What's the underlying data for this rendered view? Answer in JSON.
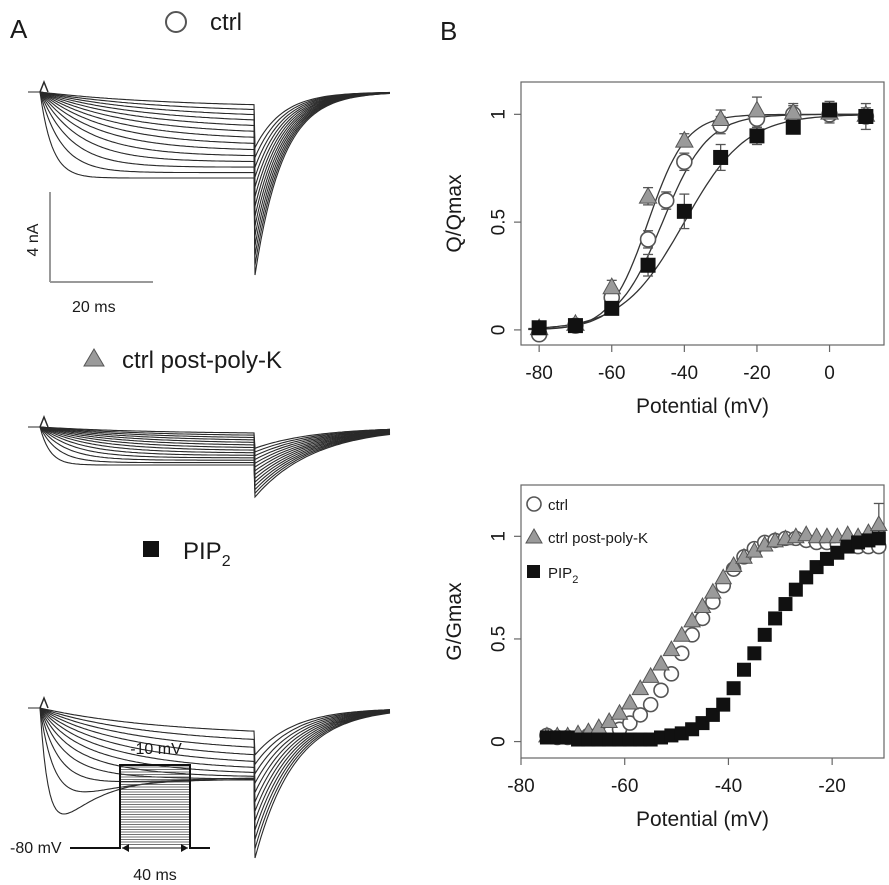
{
  "panel_labels": {
    "a": "A",
    "b": "B"
  },
  "traces": {
    "groups": [
      {
        "label": "ctrl",
        "marker": "open-circle"
      },
      {
        "label": "ctrl post-poly-K",
        "marker": "gray-triangle"
      },
      {
        "label": "PIP",
        "sub": "2",
        "marker": "black-square"
      }
    ],
    "scale_bar": {
      "current": "4 nA",
      "time": "20 ms"
    },
    "protocol": {
      "step": "-10 mV",
      "hold": "-80 mV",
      "duration": "40 ms"
    }
  },
  "colors": {
    "ctrl_marker": "#ffffff",
    "polyK_marker": "#9a9a9a",
    "pip2_marker": "#111111",
    "axis": "#666666",
    "trace": "#2a2a2a"
  },
  "chart_data": [
    {
      "type": "scatter",
      "xlabel": "Potential (mV)",
      "ylabel": "Q/Qmax",
      "xlim": [
        -85,
        15
      ],
      "ylim": [
        -0.07,
        1.15
      ],
      "xticks": [
        -80,
        -60,
        -40,
        -20,
        0
      ],
      "yticks": [
        0,
        0.5,
        1
      ],
      "ytick_labels": [
        "0",
        "0.5",
        "1"
      ],
      "series": [
        {
          "marker": "circle-open",
          "color": "#ffffff",
          "x": [
            -80,
            -70,
            -60,
            -50,
            -45,
            -40,
            -30,
            -20,
            -10,
            0,
            10
          ],
          "y": [
            -0.02,
            0.02,
            0.15,
            0.42,
            0.6,
            0.78,
            0.95,
            0.98,
            1.0,
            1.0,
            0.99
          ],
          "err": [
            0.02,
            0.02,
            0.03,
            0.04,
            0.04,
            0.04,
            0.04,
            0.04,
            0.04,
            0.04,
            0.06
          ]
        },
        {
          "marker": "triangle",
          "color": "#9a9a9a",
          "x": [
            -80,
            -70,
            -60,
            -50,
            -40,
            -30,
            -20,
            -10,
            0,
            10
          ],
          "y": [
            0.01,
            0.03,
            0.2,
            0.62,
            0.88,
            0.98,
            1.02,
            1.01,
            1.01,
            1.0
          ],
          "err": [
            0.02,
            0.02,
            0.03,
            0.04,
            0.03,
            0.04,
            0.06,
            0.04,
            0.04,
            0.03
          ]
        },
        {
          "marker": "square",
          "color": "#111111",
          "x": [
            -80,
            -70,
            -60,
            -50,
            -40,
            -30,
            -20,
            -10,
            0,
            10
          ],
          "y": [
            0.01,
            0.02,
            0.1,
            0.3,
            0.55,
            0.8,
            0.9,
            0.94,
            1.02,
            0.99
          ],
          "err": [
            0.02,
            0.02,
            0.03,
            0.05,
            0.08,
            0.06,
            0.04,
            0.03,
            0.04,
            0.03
          ]
        }
      ]
    },
    {
      "type": "scatter",
      "xlabel": "Potential (mV)",
      "ylabel": "G/Gmax",
      "xlim": [
        -80,
        -10
      ],
      "ylim": [
        -0.08,
        1.25
      ],
      "xticks": [
        -80,
        -60,
        -40,
        -20
      ],
      "yticks": [
        0,
        0.5,
        1
      ],
      "ytick_labels": [
        "0",
        "0.5",
        "1"
      ],
      "legend": {
        "position": "top-left",
        "entries": [
          {
            "label": "ctrl",
            "marker": "circle-open"
          },
          {
            "label": "ctrl post-poly-K",
            "marker": "triangle"
          },
          {
            "label": "PIP",
            "sub": "2",
            "marker": "square"
          }
        ]
      },
      "series": [
        {
          "marker": "circle-open",
          "color": "#ffffff",
          "x": [
            -75,
            -73,
            -71,
            -69,
            -67,
            -65,
            -63,
            -61,
            -59,
            -57,
            -55,
            -53,
            -51,
            -49,
            -47,
            -45,
            -43,
            -41,
            -39,
            -37,
            -35,
            -33,
            -31,
            -29,
            -27,
            -25,
            -23,
            -21,
            -19,
            -17,
            -15,
            -13,
            -11
          ],
          "y": [
            0.03,
            0.02,
            0.02,
            0.02,
            0.03,
            0.03,
            0.04,
            0.06,
            0.09,
            0.13,
            0.18,
            0.25,
            0.33,
            0.43,
            0.52,
            0.6,
            0.68,
            0.76,
            0.84,
            0.9,
            0.94,
            0.97,
            0.98,
            0.99,
            0.99,
            0.98,
            0.97,
            0.97,
            0.96,
            0.96,
            0.95,
            0.95,
            0.95
          ]
        },
        {
          "marker": "triangle",
          "color": "#9a9a9a",
          "x": [
            -75,
            -73,
            -71,
            -69,
            -67,
            -65,
            -63,
            -61,
            -59,
            -57,
            -55,
            -53,
            -51,
            -49,
            -47,
            -45,
            -43,
            -41,
            -39,
            -37,
            -35,
            -33,
            -31,
            -29,
            -27,
            -25,
            -23,
            -21,
            -19,
            -17,
            -15,
            -13,
            -11
          ],
          "y": [
            0.03,
            0.03,
            0.03,
            0.04,
            0.05,
            0.07,
            0.1,
            0.14,
            0.19,
            0.26,
            0.32,
            0.38,
            0.45,
            0.52,
            0.59,
            0.66,
            0.73,
            0.8,
            0.86,
            0.9,
            0.93,
            0.96,
            0.98,
            0.99,
            1.0,
            1.01,
            1.0,
            1.0,
            1.0,
            1.01,
            1.0,
            1.02,
            1.06
          ],
          "err_last": 0.1
        },
        {
          "marker": "square",
          "color": "#111111",
          "x": [
            -75,
            -73,
            -71,
            -69,
            -67,
            -65,
            -63,
            -61,
            -59,
            -57,
            -55,
            -53,
            -51,
            -49,
            -47,
            -45,
            -43,
            -41,
            -39,
            -37,
            -35,
            -33,
            -31,
            -29,
            -27,
            -25,
            -23,
            -21,
            -19,
            -17,
            -15,
            -13,
            -11
          ],
          "y": [
            0.02,
            0.02,
            0.02,
            0.01,
            0.01,
            0.01,
            0.01,
            0.01,
            0.01,
            0.01,
            0.01,
            0.02,
            0.03,
            0.04,
            0.06,
            0.09,
            0.13,
            0.18,
            0.26,
            0.35,
            0.43,
            0.52,
            0.6,
            0.67,
            0.74,
            0.8,
            0.85,
            0.89,
            0.92,
            0.95,
            0.97,
            0.98,
            0.99
          ]
        }
      ]
    }
  ]
}
